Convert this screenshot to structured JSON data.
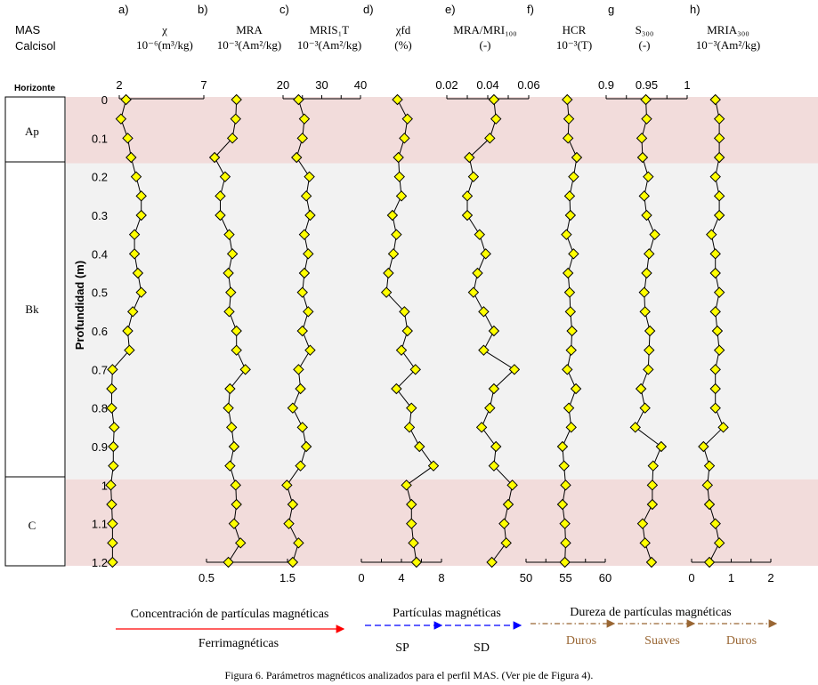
{
  "site": {
    "line1": "MAS",
    "line2": "Calcisol"
  },
  "horizon_header": "Horizonte",
  "depth_axis": {
    "label": "Profundidad (m)",
    "ticks": [
      "0",
      "0.1",
      "0.2",
      "0.3",
      "0.4",
      "0.5",
      "0.6",
      "0.7",
      "0.8",
      "0.9",
      "1",
      "1.1",
      "1.2"
    ],
    "range": [
      0,
      1.2
    ]
  },
  "horizons": [
    {
      "name": "Ap",
      "top": 0,
      "bottom": 0.165,
      "color": "#f2dcdb"
    },
    {
      "name": "Bk",
      "top": 0.165,
      "bottom": 0.985,
      "color": "#f2f2f2"
    },
    {
      "name": "C",
      "top": 0.985,
      "bottom": 1.2,
      "color": "#f2dcdb"
    }
  ],
  "panels": [
    {
      "letter": "a)",
      "title": "χ",
      "unit": "10⁻⁶(m³/kg)"
    },
    {
      "letter": "b)",
      "title": "MRA",
      "unit": "10⁻³(Am²/kg)"
    },
    {
      "letter": "c)",
      "title": "MRIS₁T",
      "unit": "10⁻³(Am²/kg)"
    },
    {
      "letter": "d)",
      "title": "χfd",
      "unit": "(%)"
    },
    {
      "letter": "e)",
      "title": "MRA/MRI₁₀₀",
      "unit": "(-)"
    },
    {
      "letter": "f)",
      "title": "HCR",
      "unit": "10⁻³(T)"
    },
    {
      "letter": "g",
      "title": "S₃₀₀",
      "unit": "(-)"
    },
    {
      "letter": "h)",
      "title": "MRIA₃₀₀",
      "unit": "10⁻³(Am²/kg)"
    }
  ],
  "chart_data": [
    {
      "type": "line",
      "name": "χ",
      "axis_position": "top",
      "xlim": [
        2,
        7
      ],
      "ticks": [
        "2",
        "7"
      ],
      "depth": [
        0,
        0.05,
        0.1,
        0.15,
        0.2,
        0.25,
        0.3,
        0.35,
        0.4,
        0.45,
        0.5,
        0.55,
        0.6,
        0.65,
        0.7,
        0.75,
        0.8,
        0.85,
        0.9,
        0.95,
        1.0,
        1.05,
        1.1,
        1.15,
        1.2
      ],
      "values": [
        2.4,
        2.1,
        2.5,
        2.7,
        3.0,
        3.3,
        3.3,
        2.9,
        2.9,
        3.1,
        3.3,
        2.8,
        2.5,
        2.6,
        1.6,
        1.55,
        1.55,
        1.7,
        1.65,
        1.65,
        1.5,
        1.55,
        1.6,
        1.6,
        1.6
      ]
    },
    {
      "type": "line",
      "name": "MRA",
      "axis_position": "bottom",
      "xlim": [
        0.5,
        1.5
      ],
      "ticks": [
        "0.5",
        "1.5"
      ],
      "depth": [
        0,
        0.05,
        0.1,
        0.15,
        0.2,
        0.25,
        0.3,
        0.35,
        0.4,
        0.45,
        0.5,
        0.55,
        0.6,
        0.65,
        0.7,
        0.75,
        0.8,
        0.85,
        0.9,
        0.95,
        1.0,
        1.05,
        1.1,
        1.15,
        1.2
      ],
      "values": [
        0.87,
        0.86,
        0.82,
        0.6,
        0.73,
        0.67,
        0.67,
        0.78,
        0.82,
        0.77,
        0.8,
        0.78,
        0.87,
        0.87,
        0.98,
        0.79,
        0.77,
        0.81,
        0.84,
        0.79,
        0.86,
        0.87,
        0.84,
        0.92,
        0.77
      ]
    },
    {
      "type": "line",
      "name": "MRIS1T",
      "axis_position": "top",
      "xlim": [
        20,
        40
      ],
      "ticks": [
        "20",
        "30",
        "40"
      ],
      "depth": [
        0,
        0.05,
        0.1,
        0.15,
        0.2,
        0.25,
        0.3,
        0.35,
        0.4,
        0.45,
        0.5,
        0.55,
        0.6,
        0.65,
        0.7,
        0.75,
        0.8,
        0.85,
        0.9,
        0.95,
        1.0,
        1.05,
        1.1,
        1.15,
        1.2
      ],
      "values": [
        24.0,
        25.5,
        25.0,
        23.5,
        26.8,
        26.0,
        27.0,
        25.5,
        26.5,
        25.5,
        25.0,
        26.5,
        25.0,
        27.0,
        24.0,
        24.5,
        22.5,
        25.0,
        26.0,
        24.5,
        21.0,
        22.5,
        21.5,
        24.0,
        22.5
      ]
    },
    {
      "type": "line",
      "name": "χfd",
      "axis_position": "bottom",
      "xlim": [
        0,
        8
      ],
      "ticks": [
        "0",
        "4",
        "8"
      ],
      "depth": [
        0,
        0.05,
        0.1,
        0.15,
        0.2,
        0.25,
        0.3,
        0.35,
        0.4,
        0.45,
        0.5,
        0.55,
        0.6,
        0.65,
        0.7,
        0.75,
        0.8,
        0.85,
        0.9,
        0.95,
        1.0,
        1.05,
        1.1,
        1.15,
        1.2
      ],
      "values": [
        3.6,
        4.6,
        4.3,
        3.7,
        3.8,
        4.0,
        3.1,
        3.5,
        3.2,
        2.7,
        2.5,
        4.3,
        4.6,
        4.0,
        5.4,
        3.5,
        5.0,
        4.8,
        5.8,
        7.2,
        4.5,
        5.0,
        5.0,
        5.2,
        5.5
      ]
    },
    {
      "type": "line",
      "name": "MRA/MRI100",
      "axis_position": "top",
      "xlim": [
        0.02,
        0.06
      ],
      "ticks": [
        "0.02",
        "0.04",
        "0.06"
      ],
      "depth": [
        0,
        0.05,
        0.1,
        0.15,
        0.2,
        0.25,
        0.3,
        0.35,
        0.4,
        0.45,
        0.5,
        0.55,
        0.6,
        0.65,
        0.7,
        0.75,
        0.8,
        0.85,
        0.9,
        0.95,
        1.0,
        1.05,
        1.1,
        1.15,
        1.2
      ],
      "values": [
        0.043,
        0.044,
        0.041,
        0.031,
        0.033,
        0.03,
        0.03,
        0.036,
        0.039,
        0.035,
        0.033,
        0.038,
        0.043,
        0.038,
        0.053,
        0.043,
        0.041,
        0.037,
        0.044,
        0.043,
        0.052,
        0.05,
        0.048,
        0.049,
        0.042
      ]
    },
    {
      "type": "line",
      "name": "HCR",
      "axis_position": "bottom",
      "xlim": [
        50,
        60
      ],
      "ticks": [
        "50",
        "55",
        "60"
      ],
      "depth": [
        0,
        0.05,
        0.1,
        0.15,
        0.2,
        0.25,
        0.3,
        0.35,
        0.4,
        0.45,
        0.5,
        0.55,
        0.6,
        0.65,
        0.7,
        0.75,
        0.8,
        0.85,
        0.9,
        0.95,
        1.0,
        1.05,
        1.1,
        1.15,
        1.2
      ],
      "values": [
        55.2,
        55.4,
        55.3,
        56.4,
        56.0,
        55.5,
        55.6,
        55.1,
        56.0,
        55.3,
        55.5,
        55.6,
        55.8,
        55.7,
        55.2,
        56.3,
        55.4,
        55.7,
        54.6,
        54.8,
        55.0,
        54.6,
        54.9,
        55.0,
        54.9
      ]
    },
    {
      "type": "line",
      "name": "S300",
      "axis_position": "top",
      "xlim": [
        0.9,
        1
      ],
      "ticks": [
        "0.9",
        "0.95",
        "1"
      ],
      "depth": [
        0,
        0.05,
        0.1,
        0.15,
        0.2,
        0.25,
        0.3,
        0.35,
        0.4,
        0.45,
        0.5,
        0.55,
        0.6,
        0.65,
        0.7,
        0.75,
        0.8,
        0.85,
        0.9,
        0.95,
        1.0,
        1.05,
        1.1,
        1.15,
        1.2
      ],
      "values": [
        0.949,
        0.95,
        0.944,
        0.945,
        0.952,
        0.947,
        0.95,
        0.96,
        0.953,
        0.95,
        0.947,
        0.948,
        0.954,
        0.953,
        0.952,
        0.943,
        0.948,
        0.936,
        0.968,
        0.958,
        0.957,
        0.957,
        0.945,
        0.948,
        0.956
      ]
    },
    {
      "type": "line",
      "name": "MRIA300",
      "axis_position": "bottom",
      "xlim": [
        0,
        2
      ],
      "ticks": [
        "0",
        "1",
        "2"
      ],
      "depth": [
        0,
        0.05,
        0.1,
        0.15,
        0.2,
        0.25,
        0.3,
        0.35,
        0.4,
        0.45,
        0.5,
        0.55,
        0.6,
        0.65,
        0.7,
        0.75,
        0.8,
        0.85,
        0.9,
        0.95,
        1.0,
        1.05,
        1.1,
        1.15,
        1.2
      ],
      "values": [
        0.6,
        0.7,
        0.7,
        0.7,
        0.6,
        0.7,
        0.7,
        0.5,
        0.6,
        0.6,
        0.7,
        0.6,
        0.65,
        0.7,
        0.6,
        0.6,
        0.6,
        0.8,
        0.3,
        0.45,
        0.4,
        0.45,
        0.6,
        0.7,
        0.45
      ]
    }
  ],
  "legend": {
    "concentration": {
      "title": "Concentración de partículas magnéticas",
      "label": "Ferrimagnéticas",
      "color": "#ff0000"
    },
    "particles": {
      "title": "Partículas magnéticas",
      "labels": [
        "SP",
        "SD"
      ],
      "color": "#0000ff"
    },
    "hardness": {
      "title": "Dureza de partículas magnéticas",
      "labels": [
        "Duros",
        "Suaves",
        "Duros"
      ],
      "color": "#996633"
    }
  },
  "caption": "Figura 6. Parámetros magnéticos analizados para el perfil MAS. (Ver pie de Figura 4)."
}
